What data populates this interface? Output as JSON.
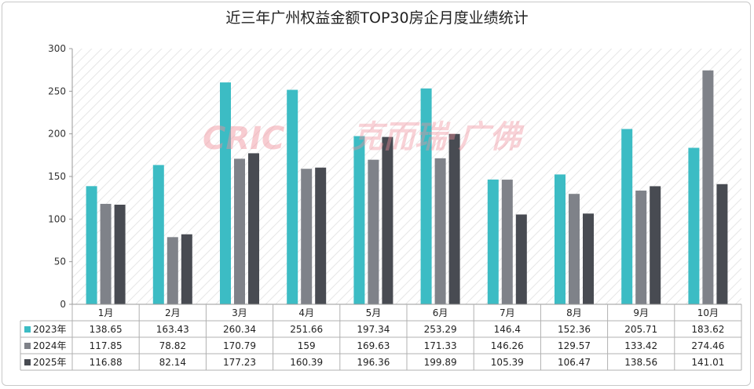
{
  "chart_data": {
    "type": "bar",
    "title": "近三年广州权益金额TOP30房企月度业绩统计",
    "categories": [
      "1月",
      "2月",
      "3月",
      "4月",
      "5月",
      "6月",
      "7月",
      "8月",
      "9月",
      "10月"
    ],
    "series": [
      {
        "name": "2023年",
        "color": "#3cbcc4",
        "values": [
          138.65,
          163.43,
          260.34,
          251.66,
          197.34,
          253.29,
          146.4,
          152.36,
          205.71,
          183.62
        ],
        "labels": [
          "138.65",
          "163.43",
          "260.34",
          "251.66",
          "197.34",
          "253.29",
          "146.4",
          "152.36",
          "205.71",
          "183.62"
        ]
      },
      {
        "name": "2024年",
        "color": "#7f8289",
        "values": [
          117.85,
          78.82,
          170.79,
          159,
          169.63,
          171.33,
          146.26,
          129.57,
          133.42,
          274.46
        ],
        "labels": [
          "117.85",
          "78.82",
          "170.79",
          "159",
          "169.63",
          "171.33",
          "146.26",
          "129.57",
          "133.42",
          "274.46"
        ]
      },
      {
        "name": "2025年",
        "color": "#484b52",
        "values": [
          116.88,
          82.14,
          177.23,
          160.39,
          196.36,
          199.89,
          105.39,
          106.47,
          138.56,
          141.01
        ],
        "labels": [
          "116.88",
          "82.14",
          "177.23",
          "160.39",
          "196.36",
          "199.89",
          "105.39",
          "106.47",
          "138.56",
          "141.01"
        ]
      }
    ],
    "yticks": [
      "0",
      "50",
      "100",
      "150",
      "200",
      "250",
      "300"
    ],
    "ylim": [
      0,
      300
    ],
    "grid": false,
    "legend": "data-table-left"
  },
  "watermark": {
    "logo": "CRIC",
    "text": "克而瑞·广佛"
  }
}
